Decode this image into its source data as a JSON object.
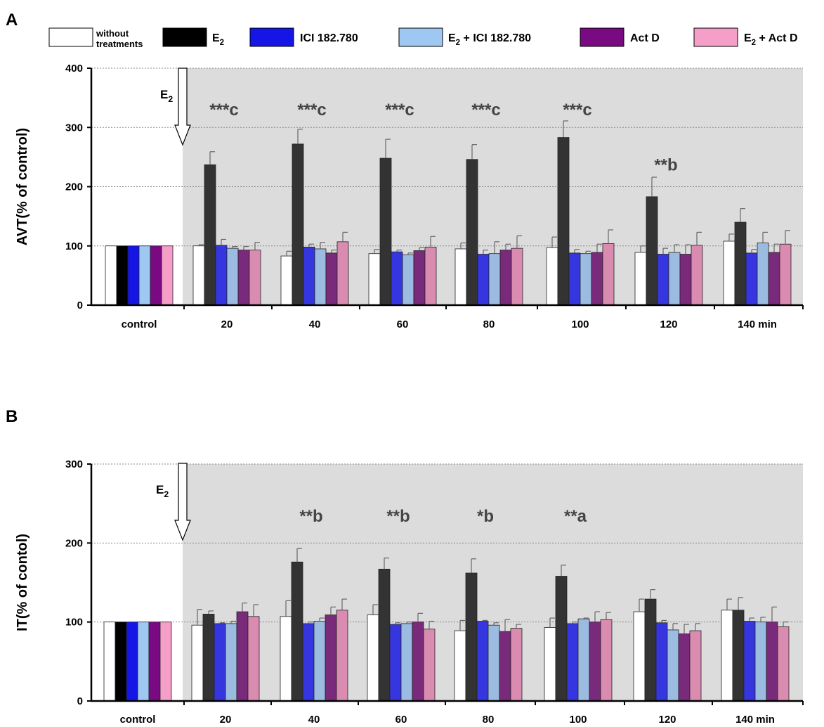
{
  "legend": {
    "items": [
      {
        "label_line1": "without",
        "label_line2": "treatments",
        "color": "#ffffff"
      },
      {
        "label": "E",
        "sub": "2",
        "suffix": "",
        "color": "#000000"
      },
      {
        "label": "ICI 182.780",
        "color": "#1515e6"
      },
      {
        "label": "E",
        "sub": "2",
        "suffix": " + ICI 182.780",
        "color": "#9ec7f2"
      },
      {
        "label": "Act D",
        "color": "#7a0a82"
      },
      {
        "label": "E",
        "sub": "2",
        "suffix": " + Act D",
        "color": "#f59ec8"
      }
    ]
  },
  "colors": {
    "control": [
      "#ffffff",
      "#000000",
      "#1515e6",
      "#9ec7f2",
      "#7a0a82",
      "#f59ec8"
    ],
    "treated": [
      "#ffffff",
      "#333333",
      "#3636e0",
      "#9cbbe0",
      "#7a2a7a",
      "#d98cb0"
    ],
    "shade": "#dcdcdc"
  },
  "chart_data": [
    {
      "panel": "A",
      "type": "bar",
      "ylabel": "AVT(% of control)",
      "ylim": [
        0,
        400
      ],
      "yticks": [
        0,
        100,
        200,
        300,
        400
      ],
      "categories": [
        "control",
        "20",
        "40",
        "60",
        "80",
        "100",
        "120",
        "140 min"
      ],
      "arrow_label": "E",
      "arrow_label_sub": "2",
      "series": [
        {
          "name": "without treatments",
          "values": [
            100,
            100,
            83,
            87,
            95,
            97,
            89,
            108
          ],
          "errors": [
            0,
            2,
            8,
            7,
            10,
            18,
            11,
            12
          ]
        },
        {
          "name": "E2",
          "values": [
            100,
            237,
            272,
            248,
            246,
            283,
            183,
            140
          ],
          "errors": [
            0,
            22,
            25,
            32,
            25,
            28,
            33,
            23
          ]
        },
        {
          "name": "ICI 182.780",
          "values": [
            100,
            101,
            98,
            90,
            86,
            88,
            86,
            88
          ],
          "errors": [
            0,
            10,
            5,
            3,
            7,
            6,
            10,
            6
          ]
        },
        {
          "name": "E2 + ICI 182.780",
          "values": [
            100,
            96,
            95,
            85,
            87,
            87,
            89,
            105
          ],
          "errors": [
            0,
            3,
            11,
            3,
            20,
            4,
            13,
            18
          ]
        },
        {
          "name": "Act D",
          "values": [
            100,
            93,
            88,
            92,
            93,
            89,
            86,
            89
          ],
          "errors": [
            0,
            6,
            5,
            5,
            10,
            14,
            16,
            14
          ]
        },
        {
          "name": "E2 + Act D",
          "values": [
            100,
            93,
            107,
            98,
            96,
            104,
            101,
            103
          ],
          "errors": [
            0,
            13,
            16,
            18,
            21,
            23,
            22,
            23
          ]
        }
      ],
      "annotations": [
        {
          "category": "20",
          "text": "***c",
          "y": 330
        },
        {
          "category": "40",
          "text": "***c",
          "y": 330
        },
        {
          "category": "60",
          "text": "***c",
          "y": 330
        },
        {
          "category": "80",
          "text": "***c",
          "y": 330
        },
        {
          "category": "100",
          "text": "***c",
          "y": 330
        },
        {
          "category": "120",
          "text": "**b",
          "y": 237
        }
      ]
    },
    {
      "panel": "B",
      "type": "bar",
      "ylabel": "IT(% of contol)",
      "ylim": [
        0,
        300
      ],
      "yticks": [
        0,
        100,
        200,
        300
      ],
      "categories": [
        "control",
        "20",
        "40",
        "60",
        "80",
        "100",
        "120",
        "140 min"
      ],
      "arrow_label": "E",
      "arrow_label_sub": "2",
      "series": [
        {
          "name": "without treatments",
          "values": [
            100,
            96,
            107,
            109,
            89,
            93,
            113,
            115
          ],
          "errors": [
            0,
            20,
            20,
            13,
            13,
            12,
            16,
            14
          ]
        },
        {
          "name": "E2",
          "values": [
            100,
            110,
            176,
            167,
            162,
            158,
            129,
            115
          ],
          "errors": [
            0,
            4,
            17,
            14,
            18,
            14,
            12,
            16
          ]
        },
        {
          "name": "ICI 182.780",
          "values": [
            100,
            98,
            98,
            97,
            101,
            98,
            99,
            101
          ],
          "errors": [
            0,
            1,
            2,
            2,
            1,
            2,
            3,
            4
          ]
        },
        {
          "name": "E2 + ICI 182.780",
          "values": [
            100,
            98,
            101,
            98,
            96,
            104,
            90,
            100
          ],
          "errors": [
            0,
            3,
            4,
            2,
            3,
            1,
            8,
            6
          ]
        },
        {
          "name": "Act D",
          "values": [
            100,
            113,
            109,
            100,
            88,
            100,
            85,
            100
          ],
          "errors": [
            0,
            11,
            10,
            11,
            15,
            13,
            12,
            19
          ]
        },
        {
          "name": "E2 + Act D",
          "values": [
            100,
            107,
            115,
            91,
            92,
            103,
            89,
            94
          ],
          "errors": [
            0,
            15,
            14,
            10,
            5,
            9,
            9,
            6
          ]
        }
      ],
      "annotations": [
        {
          "category": "40",
          "text": "**b",
          "y": 234
        },
        {
          "category": "60",
          "text": "**b",
          "y": 234
        },
        {
          "category": "80",
          "text": "*b",
          "y": 234
        },
        {
          "category": "100",
          "text": "**a",
          "y": 234
        }
      ]
    }
  ]
}
